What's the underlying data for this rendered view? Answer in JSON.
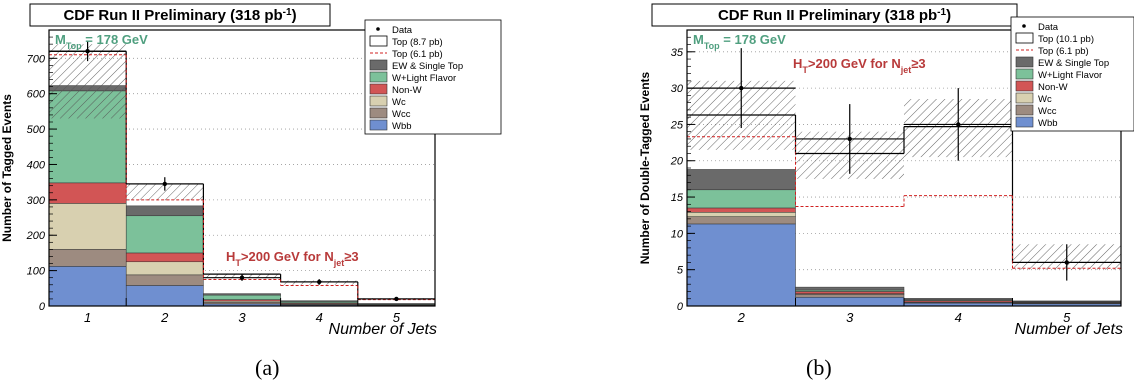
{
  "colors": {
    "wbb": "#6f8fd0",
    "wcc": "#9d8b80",
    "wc": "#d8d0b0",
    "nonw": "#d25555",
    "wlf": "#7cc19a",
    "ew": "#6a6a6a",
    "mass_text": "#4f9f7f",
    "ht_text": "#b83a3a",
    "top_line": "#000000",
    "top61_line": "#d02020"
  },
  "chart_data": [
    {
      "type": "bar",
      "title": "CDF Run II Preliminary (318 pb",
      "title_sup": "-1",
      "title_end": ")",
      "xlabel": "Number of Jets",
      "ylabel": "Number of Tagged Events",
      "mass_label": "M",
      "mass_sub": "Top",
      "mass_value": " = 178 GeV",
      "ht_label": "H",
      "ht_sub": "T",
      "ht_mid": ">200 GeV for N",
      "ht_sub2": "jet",
      "ht_end": "≥3",
      "caption": "(a)",
      "categories": [
        "1",
        "2",
        "3",
        "4",
        "5"
      ],
      "ylim": [
        0,
        780
      ],
      "yticks": [
        "0",
        "100",
        "200",
        "300",
        "400",
        "500",
        "600",
        "700"
      ],
      "ytick_values": [
        0,
        100,
        200,
        300,
        400,
        500,
        600,
        700
      ],
      "legend": {
        "data": "Data",
        "top": "Top (8.7 pb)",
        "top61": "Top (6.1 pb)",
        "ew": "EW & Single Top",
        "wlf": "W+Light Flavor",
        "nonw": "Non-W",
        "wc": "Wc",
        "wcc": "Wcc",
        "wbb": "Wbb"
      },
      "series": [
        {
          "name": "Wbb",
          "values": [
            112,
            58,
            6,
            3,
            1
          ]
        },
        {
          "name": "Wcc",
          "values": [
            48,
            30,
            4,
            2,
            1
          ]
        },
        {
          "name": "Wc",
          "values": [
            130,
            37,
            4,
            2,
            1
          ]
        },
        {
          "name": "Non-W",
          "values": [
            58,
            25,
            4,
            2,
            1
          ]
        },
        {
          "name": "W+Light Flavor",
          "values": [
            260,
            105,
            13,
            4,
            2
          ]
        },
        {
          "name": "EW & Single Top",
          "values": [
            15,
            28,
            4,
            2,
            1
          ]
        }
      ],
      "top_total": [
        720,
        345,
        90,
        68,
        20
      ],
      "top61_total": [
        710,
        300,
        75,
        58,
        18
      ],
      "unc_low": [
        530,
        300,
        78,
        60,
        17
      ],
      "unc_high": [
        740,
        345,
        92,
        72,
        22
      ],
      "data": [
        720,
        345,
        80,
        68,
        20
      ],
      "data_err": [
        28,
        19,
        9,
        8,
        4
      ]
    },
    {
      "type": "bar",
      "title": "CDF Run II Preliminary (318 pb",
      "title_sup": "-1",
      "title_end": ")",
      "xlabel": "Number of Jets",
      "ylabel": "Number of Double-Tagged Events",
      "mass_label": "M",
      "mass_sub": "Top",
      "mass_value": " = 178 GeV",
      "ht_label": "H",
      "ht_sub": "T",
      "ht_mid": ">200 GeV for N",
      "ht_sub2": "jet",
      "ht_end": "≥3",
      "caption": "(b)",
      "categories": [
        "2",
        "3",
        "4",
        "5"
      ],
      "ylim": [
        0,
        38
      ],
      "yticks": [
        "0",
        "5",
        "10",
        "15",
        "20",
        "25",
        "30",
        "35"
      ],
      "ytick_values": [
        0,
        5,
        10,
        15,
        20,
        25,
        30,
        35
      ],
      "legend": {
        "data": "Data",
        "top": "Top (10.1 pb)",
        "top61": "Top (6.1 pb)",
        "ew": "EW & Single Top",
        "wlf": "W+Light Flavor",
        "nonw": "Non-W",
        "wc": "Wc",
        "wcc": "Wcc",
        "wbb": "Wbb"
      },
      "series": [
        {
          "name": "Wbb",
          "values": [
            11.3,
            1.2,
            0.4,
            0.3
          ]
        },
        {
          "name": "Wcc",
          "values": [
            1.0,
            0.4,
            0.1,
            0.1
          ]
        },
        {
          "name": "Wc",
          "values": [
            0.6,
            0.1,
            0.05,
            0.05
          ]
        },
        {
          "name": "Non-W",
          "values": [
            0.6,
            0.3,
            0.2,
            0.1
          ]
        },
        {
          "name": "W+Light Flavor",
          "values": [
            2.5,
            0.2,
            0.1,
            0.05
          ]
        },
        {
          "name": "EW & Single Top",
          "values": [
            2.8,
            0.4,
            0.2,
            0.1
          ]
        }
      ],
      "top_total": [
        26.3,
        21.0,
        24.7,
        6.0
      ],
      "top61_total": [
        23.3,
        13.7,
        15.2,
        5.2
      ],
      "unc_low": [
        21.5,
        17.5,
        20.5,
        5.0
      ],
      "unc_high": [
        31.0,
        24.0,
        28.5,
        8.5
      ],
      "data": [
        30,
        23,
        25,
        6
      ],
      "data_err": [
        5.5,
        4.8,
        5.0,
        2.5
      ]
    }
  ]
}
